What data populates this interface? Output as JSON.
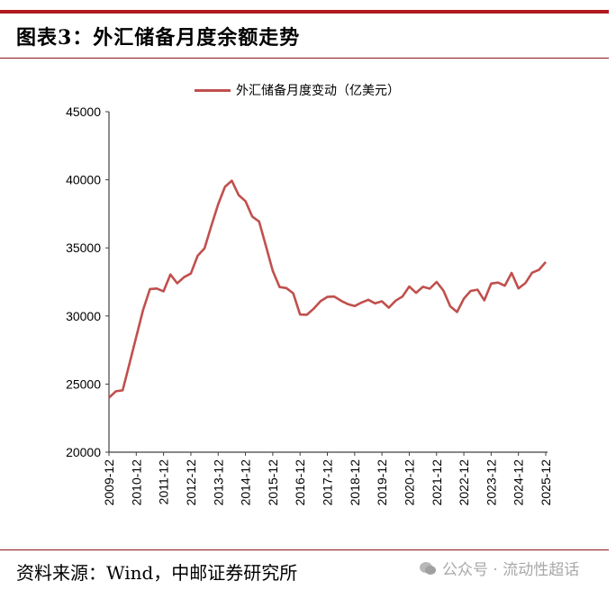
{
  "header": {
    "title": "图表3：外汇储备月度余额走势"
  },
  "legend": {
    "label": "外汇储备月度变动（亿美元）",
    "color": "#c0504d"
  },
  "footer": {
    "source": "资料来源：Wind，中邮证券研究所",
    "watermark": "公众号 · 流动性超话"
  },
  "colors": {
    "accent": "#b0191f",
    "series": "#c0504d",
    "axis": "#404040"
  },
  "chart_data": {
    "type": "line",
    "title": "图表3：外汇储备月度余额走势",
    "xlabel": "",
    "ylabel": "",
    "ylim": [
      20000,
      45000
    ],
    "yticks": [
      20000,
      25000,
      30000,
      35000,
      40000,
      45000
    ],
    "xticks": [
      "2009-12",
      "2010-12",
      "2011-12",
      "2012-12",
      "2013-12",
      "2014-12",
      "2015-12",
      "2016-12",
      "2017-12",
      "2018-12",
      "2019-12",
      "2020-12",
      "2021-12",
      "2022-12",
      "2023-12",
      "2024-12",
      "2025-12"
    ],
    "grid": false,
    "legend_position": "top",
    "series": [
      {
        "name": "外汇储备月度变动（亿美元）",
        "x": [
          "2009-12",
          "2010-03",
          "2010-06",
          "2010-09",
          "2010-12",
          "2011-03",
          "2011-06",
          "2011-09",
          "2011-12",
          "2012-03",
          "2012-06",
          "2012-09",
          "2012-12",
          "2013-03",
          "2013-06",
          "2013-09",
          "2013-12",
          "2014-03",
          "2014-06",
          "2014-09",
          "2014-12",
          "2015-03",
          "2015-06",
          "2015-09",
          "2015-12",
          "2016-03",
          "2016-06",
          "2016-09",
          "2016-12",
          "2017-03",
          "2017-06",
          "2017-09",
          "2017-12",
          "2018-03",
          "2018-06",
          "2018-09",
          "2018-12",
          "2019-03",
          "2019-06",
          "2019-09",
          "2019-12",
          "2020-03",
          "2020-06",
          "2020-09",
          "2020-12",
          "2021-03",
          "2021-06",
          "2021-09",
          "2021-12",
          "2022-03",
          "2022-06",
          "2022-09",
          "2022-12",
          "2023-03",
          "2023-06",
          "2023-09",
          "2023-12",
          "2024-03",
          "2024-06",
          "2024-09",
          "2024-12",
          "2025-03",
          "2025-06",
          "2025-09",
          "2025-12"
        ],
        "values": [
          23992,
          24471,
          24543,
          26483,
          28473,
          30447,
          31975,
          32017,
          31811,
          33050,
          32400,
          32850,
          33116,
          34426,
          34967,
          36627,
          38213,
          39481,
          39932,
          38877,
          38430,
          37300,
          36938,
          35141,
          33304,
          32126,
          32052,
          31664,
          30105,
          30091,
          30536,
          31085,
          31399,
          31428,
          31121,
          30870,
          30727,
          30988,
          31192,
          30924,
          31079,
          30606,
          31123,
          31426,
          32165,
          31700,
          32140,
          32006,
          32502,
          31880,
          30713,
          30290,
          31277,
          31839,
          31929,
          31151,
          32380,
          32457,
          32224,
          33164,
          32024,
          32407,
          33174,
          33387,
          33960
        ]
      }
    ]
  }
}
